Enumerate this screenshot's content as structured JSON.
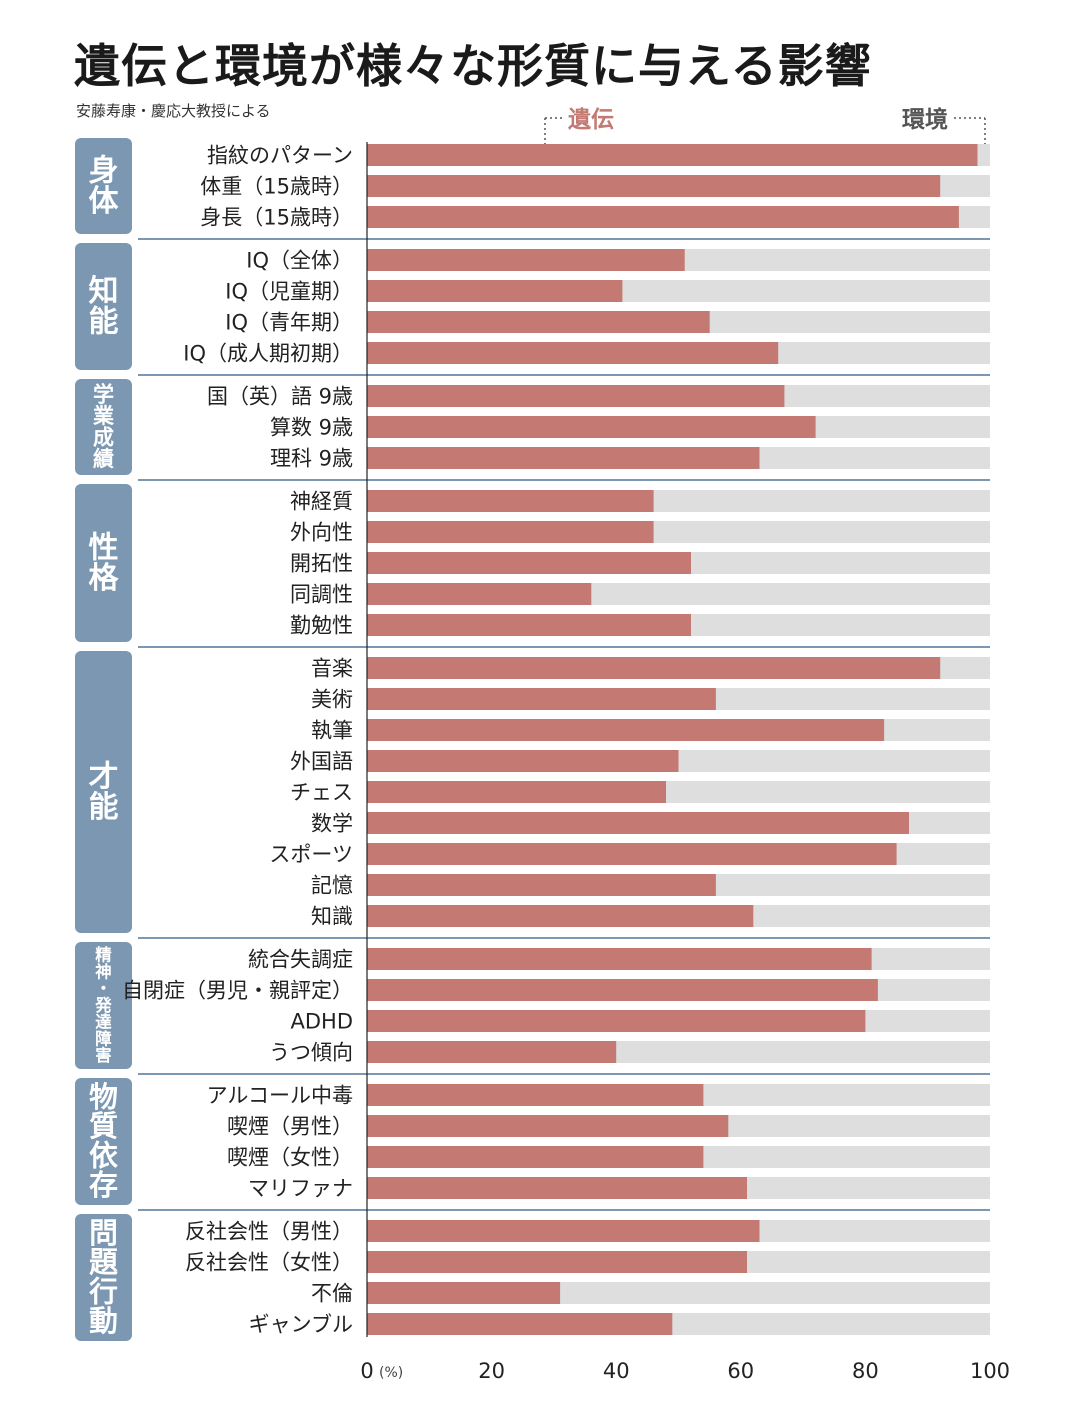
{
  "title": "遺伝と環境が様々な形質に与える影響",
  "source": "安藤寿康・慶応大教授による",
  "legend": {
    "genetics": "遺伝",
    "environment": "環境"
  },
  "colors": {
    "genetics": "#c47a72",
    "environment": "#dedede",
    "category_box": "#7b97b1",
    "category_text": "#ffffff",
    "separator": "#7b97b1"
  },
  "chart_data": {
    "type": "bar",
    "orientation": "horizontal",
    "stacked": true,
    "xlim": [
      0,
      100
    ],
    "x_unit": "(%)",
    "xticks": [
      "0",
      "20",
      "40",
      "60",
      "80",
      "100"
    ],
    "groups": [
      {
        "name": "身体",
        "items": [
          {
            "label": "指紋のパターン",
            "value": 98
          },
          {
            "label": "体重（15歳時）",
            "value": 92
          },
          {
            "label": "身長（15歳時）",
            "value": 95
          }
        ]
      },
      {
        "name": "知能",
        "items": [
          {
            "label": "IQ（全体）",
            "value": 51
          },
          {
            "label": "IQ（児童期）",
            "value": 41
          },
          {
            "label": "IQ（青年期）",
            "value": 55
          },
          {
            "label": "IQ（成人期初期）",
            "value": 66
          }
        ]
      },
      {
        "name": "学業成績",
        "items": [
          {
            "label": "国（英）語 9歳",
            "value": 67
          },
          {
            "label": "算数 9歳",
            "value": 72
          },
          {
            "label": "理科 9歳",
            "value": 63
          }
        ]
      },
      {
        "name": "性格",
        "items": [
          {
            "label": "神経質",
            "value": 46
          },
          {
            "label": "外向性",
            "value": 46
          },
          {
            "label": "開拓性",
            "value": 52
          },
          {
            "label": "同調性",
            "value": 36
          },
          {
            "label": "勤勉性",
            "value": 52
          }
        ]
      },
      {
        "name": "才能",
        "items": [
          {
            "label": "音楽",
            "value": 92
          },
          {
            "label": "美術",
            "value": 56
          },
          {
            "label": "執筆",
            "value": 83
          },
          {
            "label": "外国語",
            "value": 50
          },
          {
            "label": "チェス",
            "value": 48
          },
          {
            "label": "数学",
            "value": 87
          },
          {
            "label": "スポーツ",
            "value": 85
          },
          {
            "label": "記憶",
            "value": 56
          },
          {
            "label": "知識",
            "value": 62
          }
        ]
      },
      {
        "name": "精神・発達障害",
        "items": [
          {
            "label": "統合失調症",
            "value": 81
          },
          {
            "label": "自閉症（男児・親評定）",
            "value": 82
          },
          {
            "label": "ADHD",
            "value": 80
          },
          {
            "label": "うつ傾向",
            "value": 40
          }
        ]
      },
      {
        "name": "物質依存",
        "items": [
          {
            "label": "アルコール中毒",
            "value": 54
          },
          {
            "label": "喫煙（男性）",
            "value": 58
          },
          {
            "label": "喫煙（女性）",
            "value": 54
          },
          {
            "label": "マリファナ",
            "value": 61
          }
        ]
      },
      {
        "name": "問題行動",
        "items": [
          {
            "label": "反社会性（男性）",
            "value": 63
          },
          {
            "label": "反社会性（女性）",
            "value": 61
          },
          {
            "label": "不倫",
            "value": 31
          },
          {
            "label": "ギャンブル",
            "value": 49
          }
        ]
      }
    ]
  }
}
